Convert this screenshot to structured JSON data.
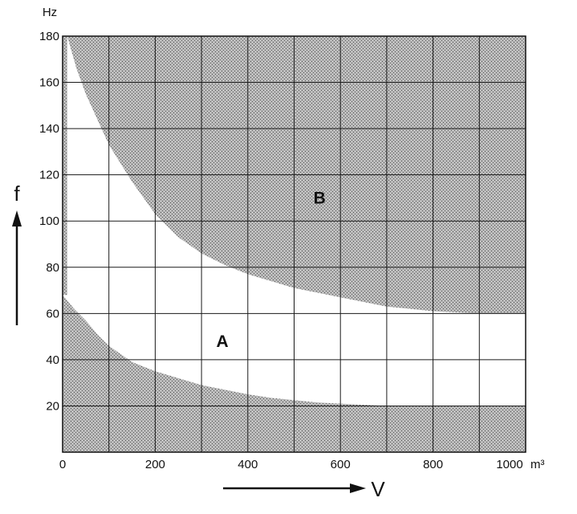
{
  "chart_data": {
    "type": "area",
    "title": "",
    "xlabel": "V",
    "ylabel": "f",
    "x_unit": "m³",
    "y_unit": "Hz",
    "xlim": [
      0,
      1000
    ],
    "ylim": [
      0,
      180
    ],
    "x_ticks": [
      "0",
      "200",
      "400",
      "600",
      "800",
      "1000"
    ],
    "y_ticks": [
      "20",
      "40",
      "60",
      "80",
      "100",
      "120",
      "140",
      "160",
      "180"
    ],
    "grid": true,
    "regions": [
      {
        "label": "A",
        "description": "unshaded band between curves",
        "label_at": [
          345,
          48
        ]
      },
      {
        "label": "B",
        "description": "shaded region above upper curve",
        "label_at": [
          555,
          110
        ]
      }
    ],
    "upper_boundary": {
      "x": [
        10,
        30,
        50,
        75,
        100,
        150,
        200,
        250,
        300,
        350,
        400,
        450,
        500,
        550,
        600,
        700,
        800,
        900,
        1000
      ],
      "y": [
        180,
        166,
        155,
        144,
        133,
        117,
        103,
        93,
        86,
        81,
        77,
        74,
        71,
        69,
        67,
        63,
        61,
        60,
        60
      ]
    },
    "lower_boundary": {
      "x": [
        0,
        25,
        50,
        75,
        100,
        150,
        200,
        250,
        300,
        350,
        400,
        450,
        500,
        550,
        600,
        650,
        700,
        800,
        900,
        1000
      ],
      "y": [
        68,
        62,
        57,
        51,
        46,
        39,
        35,
        32,
        29,
        27,
        25,
        23.5,
        22.5,
        21.5,
        21,
        20.5,
        20,
        20,
        20,
        20
      ]
    }
  }
}
